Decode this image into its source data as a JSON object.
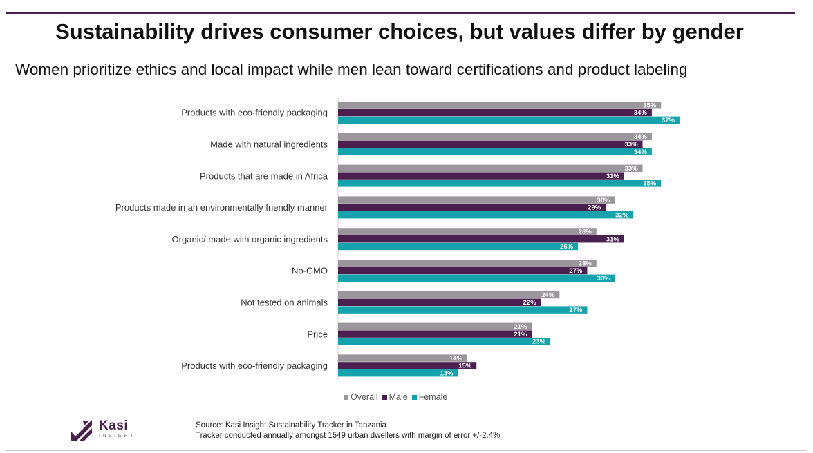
{
  "header": {
    "title": "Sustainability drives consumer choices, but values differ by gender",
    "subtitle": "Women prioritize ethics and local impact while men lean toward certifications and product labeling"
  },
  "chart_data": {
    "type": "bar",
    "orientation": "horizontal",
    "title": "Sustainability drives consumer choices, but values differ by gender",
    "subtitle": "Women prioritize ethics and local impact while men lean toward certifications and product labeling",
    "categories": [
      "Products with eco-friendly packaging",
      "Made with natural ingredients",
      "Products that are made in Africa",
      "Products made in an environmentally friendly manner",
      "Organic/ made with organic ingredients",
      "No-GMO",
      "Not tested on animals",
      "Price",
      "Products with eco-friendly packaging"
    ],
    "series": [
      {
        "name": "Overall",
        "color": "#9b969c",
        "values": [
          35,
          34,
          33,
          30,
          28,
          28,
          24,
          21,
          14
        ]
      },
      {
        "name": "Male",
        "color": "#4b1f4f",
        "values": [
          34,
          33,
          31,
          29,
          31,
          27,
          22,
          21,
          15
        ]
      },
      {
        "name": "Female",
        "color": "#14a3ad",
        "values": [
          37,
          34,
          35,
          32,
          26,
          30,
          27,
          23,
          13
        ]
      }
    ],
    "value_suffix": "%",
    "xlim": [
      0,
      37
    ],
    "xlabel": "",
    "ylabel": "",
    "grid": false,
    "legend_position": "bottom"
  },
  "legend": {
    "items": [
      {
        "label": "Overall",
        "color": "#9b969c"
      },
      {
        "label": "Male",
        "color": "#4b1f4f"
      },
      {
        "label": "Female",
        "color": "#14a3ad"
      }
    ]
  },
  "footer": {
    "logo_name": "Kasi",
    "logo_tagline": "INSIGHT",
    "source_line1": "Source: Kasi Insight Sustainability Tracker in Tanzania",
    "source_line2": "Tracker conducted annually amongst 1549 urban dwellers with margin of error +/-2.4%"
  },
  "colors": {
    "brand": "#4b1f4f",
    "overall": "#9b969c",
    "male": "#4b1f4f",
    "female": "#14a3ad"
  }
}
